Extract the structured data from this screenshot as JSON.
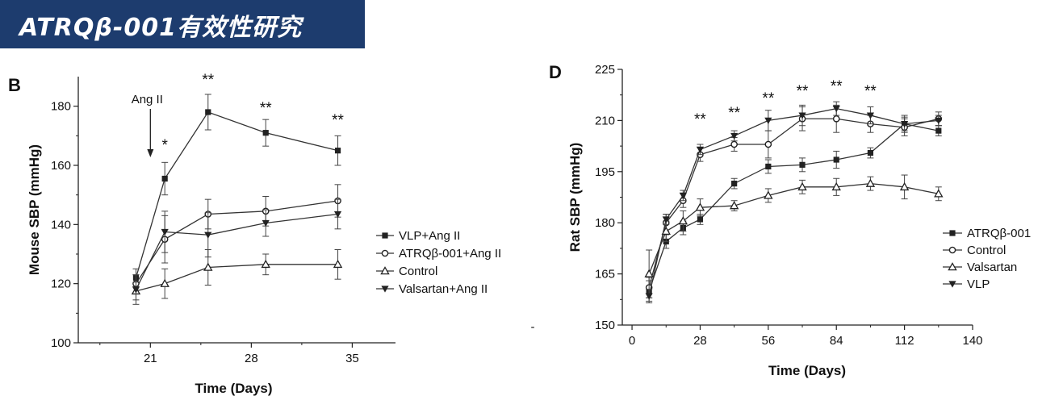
{
  "banner": {
    "title": "ATRQβ-001有效性研究"
  },
  "stray_mark": "-",
  "chart_data": [
    {
      "panel": "B",
      "type": "line",
      "xlabel": "Time (Days)",
      "ylabel": "Mouse SBP (mmHg)",
      "xlim": [
        16,
        38
      ],
      "ylim": [
        100,
        190
      ],
      "xticks": [
        21,
        28,
        35
      ],
      "yticks": [
        100,
        120,
        140,
        160,
        180
      ],
      "legend_position": "right",
      "annotation": {
        "text": "Ang II",
        "x": 21
      },
      "significance": [
        {
          "x": 22,
          "text": "*"
        },
        {
          "x": 25,
          "text": "**"
        },
        {
          "x": 29,
          "text": "**"
        },
        {
          "x": 34,
          "text": "**"
        }
      ],
      "series": [
        {
          "name": "VLP+Ang II",
          "marker": "square-filled",
          "x": [
            20,
            22,
            25,
            29,
            34
          ],
          "y": [
            122,
            155.5,
            178,
            171,
            165
          ],
          "err": [
            3,
            5.5,
            6,
            4.5,
            5
          ]
        },
        {
          "name": "ATRQβ-001+Ang II",
          "marker": "circle-open",
          "x": [
            20,
            22,
            25,
            29,
            34
          ],
          "y": [
            120,
            135,
            143.5,
            144.5,
            148
          ],
          "err": [
            3,
            8,
            5,
            5,
            5.5
          ]
        },
        {
          "name": "Control",
          "marker": "triangle-up-open",
          "x": [
            20,
            22,
            25,
            29,
            34
          ],
          "y": [
            117.5,
            120,
            125.5,
            126.5,
            126.5
          ],
          "err": [
            3,
            5,
            6,
            3.5,
            5
          ]
        },
        {
          "name": "Valsartan+Ang II",
          "marker": "triangle-down-filled",
          "x": [
            20,
            22,
            25,
            29,
            34
          ],
          "y": [
            118,
            137.5,
            136.5,
            140.5,
            143.5
          ],
          "err": [
            5,
            7,
            7.5,
            4.5,
            5
          ]
        }
      ]
    },
    {
      "panel": "D",
      "type": "line",
      "xlabel": "Time (Days)",
      "ylabel": "Rat SBP (mmHg)",
      "xlim": [
        -4,
        140
      ],
      "ylim": [
        150,
        225
      ],
      "xticks": [
        0,
        28,
        56,
        84,
        112,
        140
      ],
      "yticks": [
        150,
        165,
        180,
        195,
        210,
        225
      ],
      "legend_position": "right",
      "significance": [
        {
          "x": 28,
          "text": "**"
        },
        {
          "x": 42,
          "text": "**"
        },
        {
          "x": 56,
          "text": "**"
        },
        {
          "x": 70,
          "text": "**"
        },
        {
          "x": 84,
          "text": "**"
        },
        {
          "x": 98,
          "text": "**"
        }
      ],
      "series": [
        {
          "name": "ATRQβ-001",
          "marker": "square-filled",
          "x": [
            7,
            14,
            21,
            28,
            42,
            56,
            70,
            84,
            98,
            112,
            126
          ],
          "y": [
            160,
            174.5,
            178.5,
            181,
            191.5,
            196.5,
            197,
            198.5,
            200.5,
            209,
            207
          ],
          "err": [
            3,
            2,
            2,
            1.5,
            1.5,
            2,
            2,
            2.5,
            1.5,
            2.5,
            1.5
          ]
        },
        {
          "name": "Control",
          "marker": "circle-open",
          "x": [
            7,
            14,
            21,
            28,
            42,
            56,
            70,
            84,
            98,
            112,
            126
          ],
          "y": [
            161,
            180,
            186.5,
            200,
            203,
            203,
            210.5,
            210.5,
            209,
            208,
            210.5
          ],
          "err": [
            3,
            2.5,
            2,
            2,
            2,
            4,
            3.5,
            4,
            2.5,
            2.5,
            2
          ]
        },
        {
          "name": "Valsartan",
          "marker": "triangle-up-open",
          "x": [
            7,
            14,
            21,
            28,
            42,
            56,
            70,
            84,
            98,
            112,
            126
          ],
          "y": [
            165,
            177.5,
            180.5,
            184.5,
            185,
            188,
            190.5,
            190.5,
            191.5,
            190.5,
            188.5
          ],
          "err": [
            7,
            3,
            3,
            2.5,
            1.5,
            2,
            2,
            2.5,
            2,
            3.5,
            2
          ]
        },
        {
          "name": "VLP",
          "marker": "triangle-down-filled",
          "x": [
            7,
            14,
            21,
            28,
            42,
            56,
            70,
            84,
            98,
            112,
            126
          ],
          "y": [
            158.5,
            181,
            188,
            201.5,
            205.5,
            210,
            211.5,
            213.5,
            211.5,
            209,
            210
          ],
          "err": [
            2,
            1.5,
            1.5,
            1.5,
            1.5,
            3,
            3,
            2,
            2.5,
            2,
            1.5
          ]
        }
      ]
    }
  ]
}
